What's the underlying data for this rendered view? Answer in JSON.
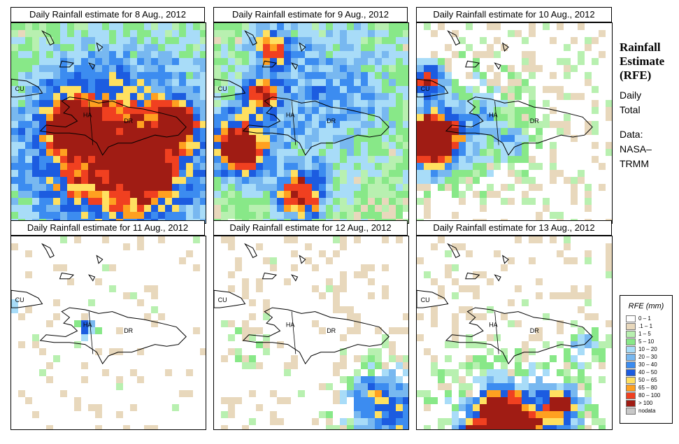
{
  "panels": [
    {
      "title": "Daily Rainfall estimate for  8 Aug., 2012",
      "pattern": "p8"
    },
    {
      "title": "Daily Rainfall estimate for  9 Aug., 2012",
      "pattern": "p9"
    },
    {
      "title": "Daily Rainfall estimate for  10 Aug., 2012",
      "pattern": "p10"
    },
    {
      "title": "Daily Rainfall estimate for  11 Aug., 2012",
      "pattern": "p11"
    },
    {
      "title": "Daily Rainfall estimate for  12 Aug., 2012",
      "pattern": "p12"
    },
    {
      "title": "Daily Rainfall estimate for  13 Aug., 2012",
      "pattern": "p13"
    }
  ],
  "map_labels": {
    "cu": "CU",
    "ha": "HA",
    "dr": "DR"
  },
  "info": {
    "title_line1": "Rainfall",
    "title_line2": "Estimate",
    "title_line3": "(RFE)",
    "subtitle_line1": "Daily",
    "subtitle_line2": "Total",
    "data_line1": "Data:",
    "data_line2": "NASA–",
    "data_line3": "TRMM"
  },
  "legend": {
    "title": "RFE (mm)",
    "items": [
      {
        "label": "0 – 1",
        "color": "#ffffff"
      },
      {
        "label": ".1 – 1",
        "color": "#e8d8bc"
      },
      {
        "label": "1 – 5",
        "color": "#b8f0b0"
      },
      {
        "label": "5 – 10",
        "color": "#88e888"
      },
      {
        "label": "10 – 20",
        "color": "#a8dcf8"
      },
      {
        "label": "20 – 30",
        "color": "#78b8f0"
      },
      {
        "label": "30 – 40",
        "color": "#3c8cf0"
      },
      {
        "label": "40 – 50",
        "color": "#1c5ce0"
      },
      {
        "label": "50 – 65",
        "color": "#ffe060"
      },
      {
        "label": "65 – 80",
        "color": "#ffa020"
      },
      {
        "label": "80 – 100",
        "color": "#f04020"
      },
      {
        "label": "> 100",
        "color": "#a01c14"
      },
      {
        "label": "nodata",
        "color": "#c8c8c8"
      }
    ]
  }
}
